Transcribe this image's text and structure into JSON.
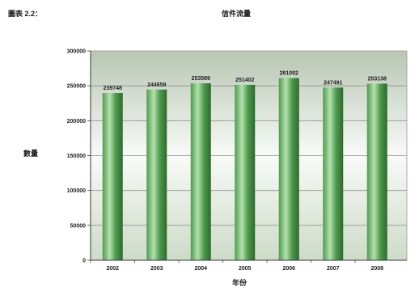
{
  "header": {
    "caption": "圖表 2.2："
  },
  "chart_data": {
    "type": "bar",
    "title": "信件流量",
    "xlabel": "年份",
    "ylabel": "數量",
    "categories": [
      "2002",
      "2003",
      "2004",
      "2005",
      "2006",
      "2007",
      "2008"
    ],
    "values": [
      239748,
      244659,
      253589,
      251402,
      261092,
      247491,
      253138
    ],
    "ylim": [
      0,
      300000
    ],
    "yticks": [
      0,
      50000,
      100000,
      150000,
      200000,
      250000,
      300000
    ],
    "grid": true,
    "data_labels": true,
    "colors": {
      "bar_dark": "#2c6a2c",
      "bar_mid": "#4f9a4f",
      "bar_light": "#b4e2ad",
      "plot_top": "#b8c6b3",
      "plot_middle": "#f8faf7",
      "plot_bottom": "#cedbc8",
      "grid": "#8e968c",
      "axis": "#3a3a3a"
    }
  }
}
